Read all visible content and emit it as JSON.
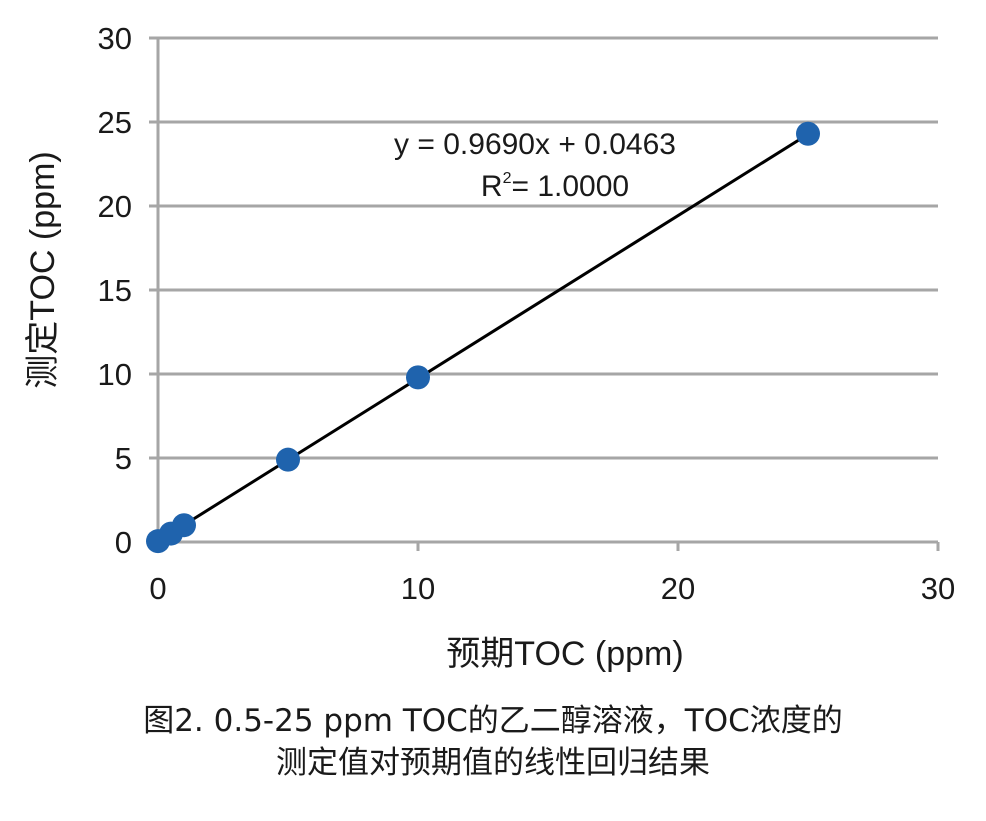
{
  "chart_data": {
    "type": "scatter",
    "title": "",
    "xlabel": "预期TOC (ppm)",
    "ylabel": "测定TOC (ppm)",
    "xlim": [
      0,
      30
    ],
    "ylim": [
      0,
      30
    ],
    "xticks": [
      0,
      10,
      20,
      30
    ],
    "yticks": [
      0,
      5,
      10,
      15,
      20,
      25,
      30
    ],
    "grid": "horizontal",
    "series": [
      {
        "color": "#1f63ad",
        "x": [
          0,
          0.5,
          1,
          5,
          10,
          25
        ],
        "y": [
          0.05,
          0.5,
          1.0,
          4.9,
          9.8,
          24.3
        ]
      }
    ],
    "trendline": {
      "slope": 0.969,
      "intercept": 0.0463,
      "color": "#000000",
      "equation": "y = 0.9690x + 0.0463",
      "r2_prefix": "R",
      "r2_sup": "2",
      "r2_value": "= 1.0000"
    }
  },
  "caption": {
    "line1": "图2. 0.5-25 ppm TOC的乙二醇溶液，TOC浓度的",
    "line2": "测定值对预期值的线性回归结果"
  }
}
